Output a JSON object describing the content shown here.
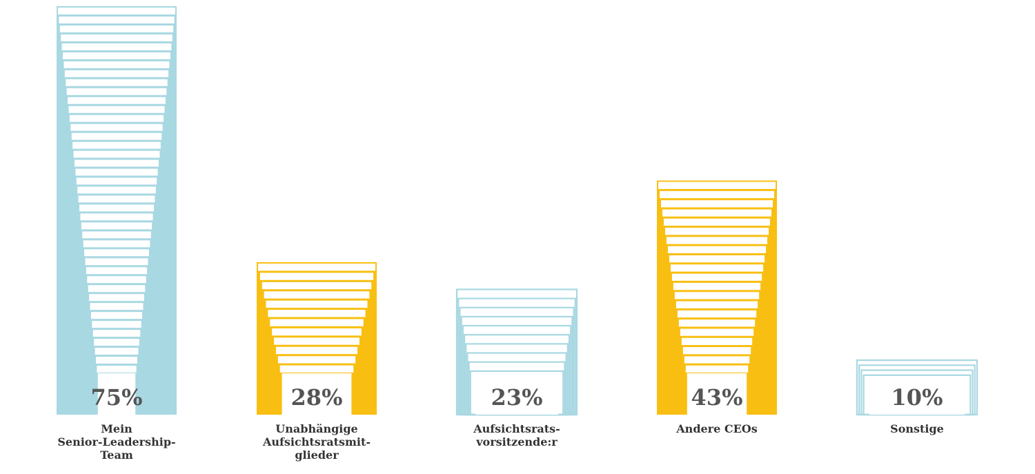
{
  "chart_data": {
    "type": "bar",
    "categories": [
      "Mein\nSenior-Leadership-\nTeam",
      "Unabhängige\nAufsichtsratsmit-\nglieder",
      "Aufsichtsrats-\nvorsitzende:r",
      "Andere CEOs",
      "Sonstige"
    ],
    "values": [
      75,
      28,
      23,
      43,
      10
    ],
    "value_labels": [
      "75%",
      "28%",
      "23%",
      "43%",
      "10%"
    ],
    "unit": "%",
    "ylim": [
      0,
      75
    ],
    "colors": [
      "#a8d8e2",
      "#f8bf12",
      "#a8d8e2",
      "#f8bf12",
      "#a8d8e2"
    ],
    "styles": [
      "filled",
      "filled",
      "outline",
      "filled",
      "outline"
    ],
    "title": "",
    "xlabel": "",
    "ylabel": "",
    "grid": false,
    "legend": "none"
  }
}
